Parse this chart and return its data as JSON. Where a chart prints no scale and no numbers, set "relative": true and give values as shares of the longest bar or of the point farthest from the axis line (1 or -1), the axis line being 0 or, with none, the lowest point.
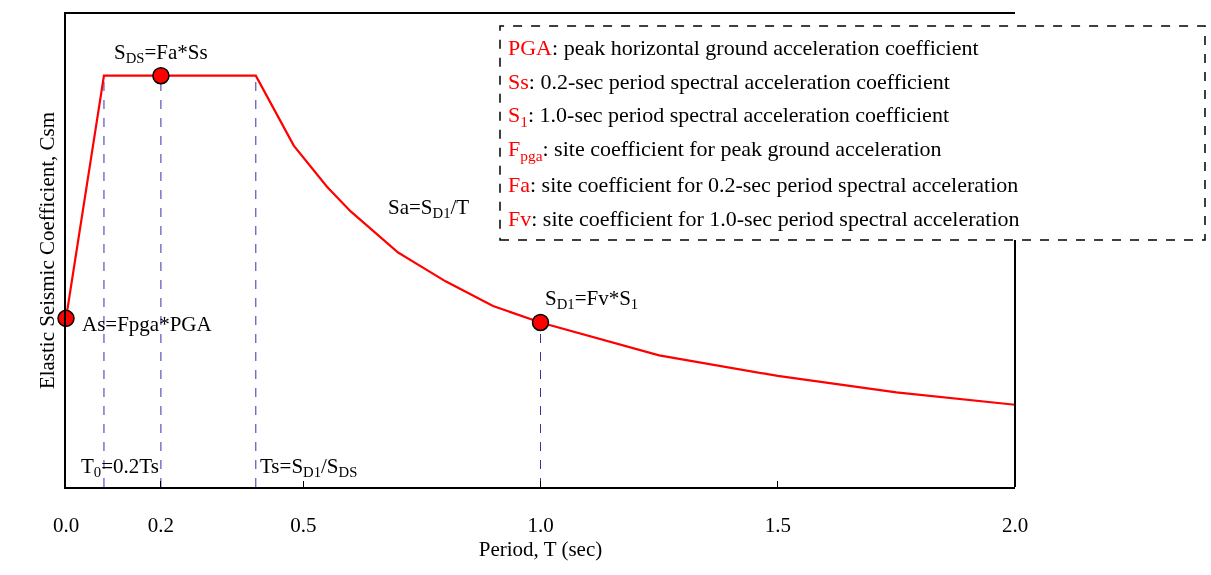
{
  "chart_data": {
    "type": "line",
    "relative": true,
    "xlabel": "Period, T (sec)",
    "ylabel": "Elastic Seismic Coefficient, Csm",
    "xlim": [
      0,
      2.0
    ],
    "xticks": [
      {
        "value": 0,
        "label": "0.0"
      },
      0.2,
      0.5,
      {
        "value": 1.0,
        "label": "1.0"
      },
      1.5,
      {
        "value": 2.0,
        "label": "2.0"
      }
    ],
    "tick_labels": "x",
    "grid": false,
    "series": [
      {
        "color": "#ff0000",
        "marker": "none",
        "line_style": "solid",
        "x": [
          0,
          0.08,
          0.4,
          0.48,
          0.55,
          0.6,
          0.7,
          0.8,
          0.9,
          1.0,
          1.25,
          1.5,
          1.75,
          2.0
        ],
        "values": [
          0.41,
          1,
          1,
          0.83,
          0.73,
          0.67,
          0.57,
          0.5,
          0.44,
          0.4,
          0.32,
          0.27,
          0.23,
          0.2
        ]
      },
      {
        "type": "scatter",
        "color": "#ff0000",
        "marker": "circle",
        "x": [
          0,
          0.2,
          1.0
        ],
        "values": [
          0.41,
          1,
          0.4
        ]
      }
    ],
    "ref_lines": [
      {
        "axis": "x",
        "value": 0.08,
        "label": "T$_{0}$=0.2Ts",
        "color": "#3333aa",
        "line_style": "dashed"
      },
      {
        "axis": "x",
        "value": 0.2,
        "color": "#3333aa",
        "line_style": "dashed"
      },
      {
        "axis": "x",
        "value": 0.4,
        "label": "Ts=S$_{D1}$/S$_{DS}$",
        "color": "#3333aa",
        "line_style": "dashed"
      },
      {
        "axis": "x",
        "value": 1.0,
        "color": "#3333aa",
        "line_style": "dashed"
      }
    ],
    "annotations": [
      {
        "text": "S$_{DS}$=Fa*Ss",
        "x": 0.2,
        "y": 1
      },
      {
        "text": "As=Fpga*PGA",
        "x": 0,
        "y": 0.41
      },
      {
        "text": "S$_{D1}$=Fv*S$_{1}$",
        "x": 1.0,
        "y": 0.4
      },
      "Sa=S$_{D1}$/T",
      "PGA: peak horizontal ground acceleration coefficient",
      "Ss: 0.2-sec period spectral acceleration coefficient",
      "S$_{1}$: 1.0-sec period spectral acceleration coefficient",
      "F$_{pga}$: site coefficient for peak ground acceleration",
      "Fa: site coefficient for 0.2-sec period spectral acceleration",
      "Fv: site coefficient for 1.0-sec period spectral acceleration"
    ]
  }
}
